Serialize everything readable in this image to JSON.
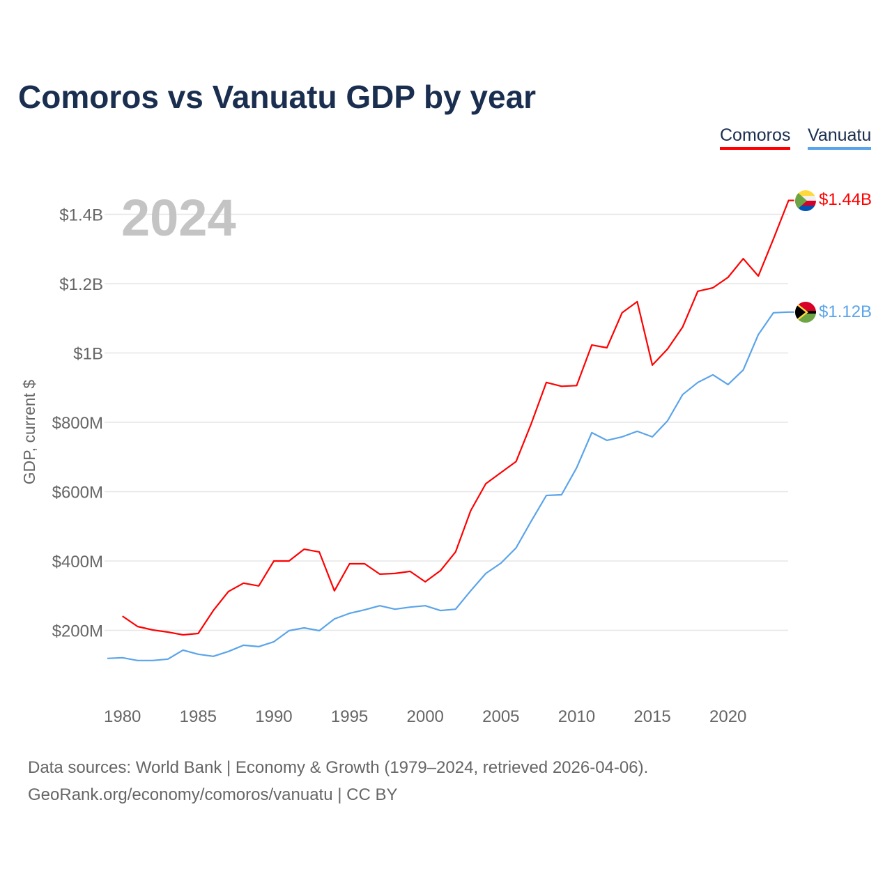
{
  "chart_data": {
    "type": "line",
    "title": "Comoros vs Vanuatu GDP by year",
    "xlabel": "",
    "ylabel": "GDP, current $",
    "year_watermark": "2024",
    "xlim": [
      1979,
      2024
    ],
    "ylim": [
      0,
      1500000000
    ],
    "x_ticks": [
      "1980",
      "1985",
      "1990",
      "1995",
      "2000",
      "2005",
      "2010",
      "2015",
      "2020"
    ],
    "y_ticks": [
      {
        "value": 200000000,
        "label": "$200M"
      },
      {
        "value": 400000000,
        "label": "$400M"
      },
      {
        "value": 600000000,
        "label": "$600M"
      },
      {
        "value": 800000000,
        "label": "$800M"
      },
      {
        "value": 1000000000,
        "label": "$1B"
      },
      {
        "value": 1200000000,
        "label": "$1.2B"
      },
      {
        "value": 1400000000,
        "label": "$1.4B"
      }
    ],
    "grid": true,
    "legend_position": "top-right",
    "x": [
      1979,
      1980,
      1981,
      1982,
      1983,
      1984,
      1985,
      1986,
      1987,
      1988,
      1989,
      1990,
      1991,
      1992,
      1993,
      1994,
      1995,
      1996,
      1997,
      1998,
      1999,
      2000,
      2001,
      2002,
      2003,
      2004,
      2005,
      2006,
      2007,
      2008,
      2009,
      2010,
      2011,
      2012,
      2013,
      2014,
      2015,
      2016,
      2017,
      2018,
      2019,
      2020,
      2021,
      2022,
      2023,
      2024
    ],
    "series": [
      {
        "name": "Comoros",
        "color": "#ff0000",
        "end_label": "$1.44B",
        "flag": "comoros-flag",
        "values_millions": [
          null,
          241,
          211,
          201,
          195,
          187,
          191,
          257,
          312,
          336,
          328,
          400,
          400,
          434,
          426,
          314,
          392,
          392,
          362,
          364,
          370,
          340,
          372,
          426,
          545,
          623,
          655,
          687,
          796,
          915,
          904,
          906,
          1023,
          1015,
          1116,
          1148,
          965,
          1011,
          1075,
          1178,
          1188,
          1218,
          1272,
          1222,
          1329,
          1440
        ]
      },
      {
        "name": "Vanuatu",
        "color": "#5aa4ea",
        "end_label": "$1.12B",
        "flag": "vanuatu-flag",
        "values_millions": [
          119,
          121,
          113,
          113,
          117,
          143,
          131,
          125,
          139,
          157,
          153,
          167,
          199,
          207,
          199,
          233,
          249,
          259,
          271,
          261,
          267,
          271,
          257,
          261,
          314,
          364,
          394,
          438,
          515,
          589,
          591,
          669,
          770,
          748,
          758,
          774,
          758,
          804,
          880,
          915,
          937,
          909,
          951,
          1053,
          1116,
          1118
        ]
      }
    ]
  },
  "footer": {
    "line1": "Data sources: World Bank | Economy & Growth (1979–2024, retrieved 2026-04-06).",
    "line2": "GeoRank.org/economy/comoros/vanuatu | CC BY"
  }
}
